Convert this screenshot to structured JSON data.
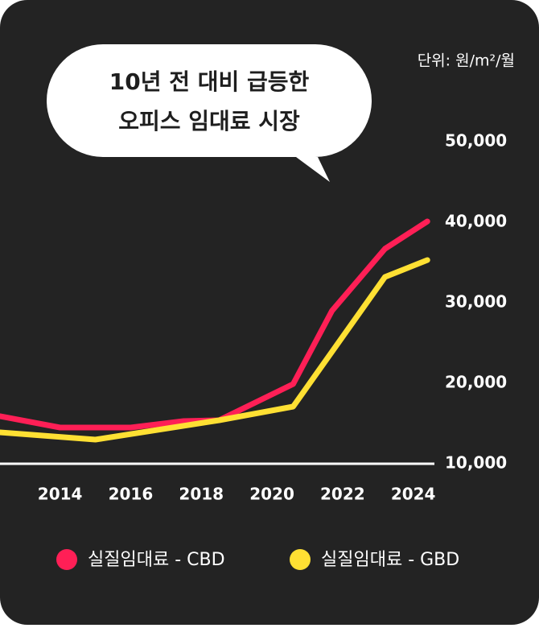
{
  "chart_data": {
    "type": "line",
    "title": [
      "10년 전 대비 급등한",
      "오피스 임대료 시장"
    ],
    "unit_label": "단위: 원/m²/월",
    "xlim": [
      2012.3,
      2024.6
    ],
    "xticks": [
      2014,
      2016,
      2018,
      2020,
      2022,
      2024
    ],
    "ylim": [
      10000,
      50000
    ],
    "yticks": [
      {
        "value": 10000,
        "label": "10,000"
      },
      {
        "value": 20000,
        "label": "20,000"
      },
      {
        "value": 30000,
        "label": "30,000"
      },
      {
        "value": 40000,
        "label": "40,000"
      },
      {
        "value": 50000,
        "label": "50,000"
      }
    ],
    "grid": false,
    "series": [
      {
        "name": "실질임대료 - CBD",
        "color": "#ff1f56",
        "x": [
          2012.3,
          2014,
          2016,
          2017.5,
          2018.5,
          2020.6,
          2021.7,
          2023.2,
          2024.4
        ],
        "values": [
          15900,
          14500,
          14500,
          15300,
          15400,
          19900,
          29000,
          36700,
          40100
        ]
      },
      {
        "name": "실질임대료 - GBD",
        "color": "#ffe033",
        "x": [
          2012.3,
          2015,
          2018.5,
          2020.6,
          2023.2,
          2024.4
        ],
        "values": [
          13900,
          13000,
          15400,
          17100,
          33200,
          35300
        ]
      }
    ]
  }
}
